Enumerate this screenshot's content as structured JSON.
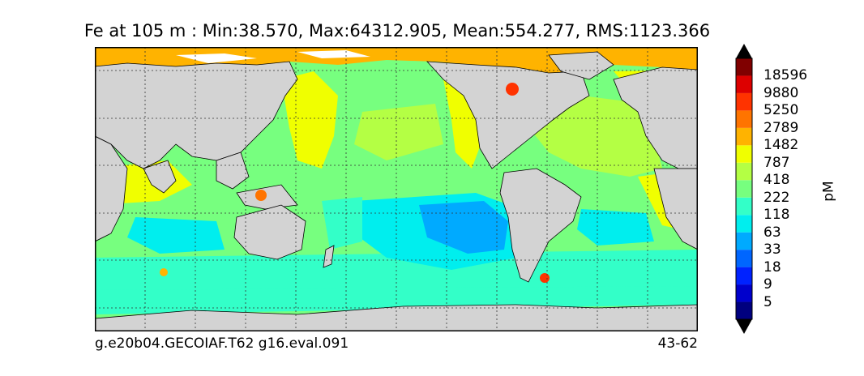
{
  "title": "Fe at 105 m : Min:38.570, Max:64312.905, Mean:554.277, RMS:1123.366",
  "caption_left": "g.e20b04.GECOIAF.T62 g16.eval.091",
  "caption_right": "43-62",
  "colorbar": {
    "unit": "pM",
    "levels": [
      "5",
      "9",
      "18",
      "33",
      "63",
      "118",
      "222",
      "418",
      "787",
      "1482",
      "2789",
      "5250",
      "9880",
      "18596"
    ],
    "colors": [
      "#00007f",
      "#0000cc",
      "#0022ff",
      "#0066ff",
      "#00aaff",
      "#00eeee",
      "#33ffc8",
      "#77ff7f",
      "#b4ff44",
      "#f0ff00",
      "#ffb300",
      "#ff7400",
      "#ff3300",
      "#dd0000",
      "#800000"
    ]
  },
  "map": {
    "land_color": "#d3d3d3",
    "no_data_color": "#ffffff",
    "gridlines": "dotted"
  }
}
